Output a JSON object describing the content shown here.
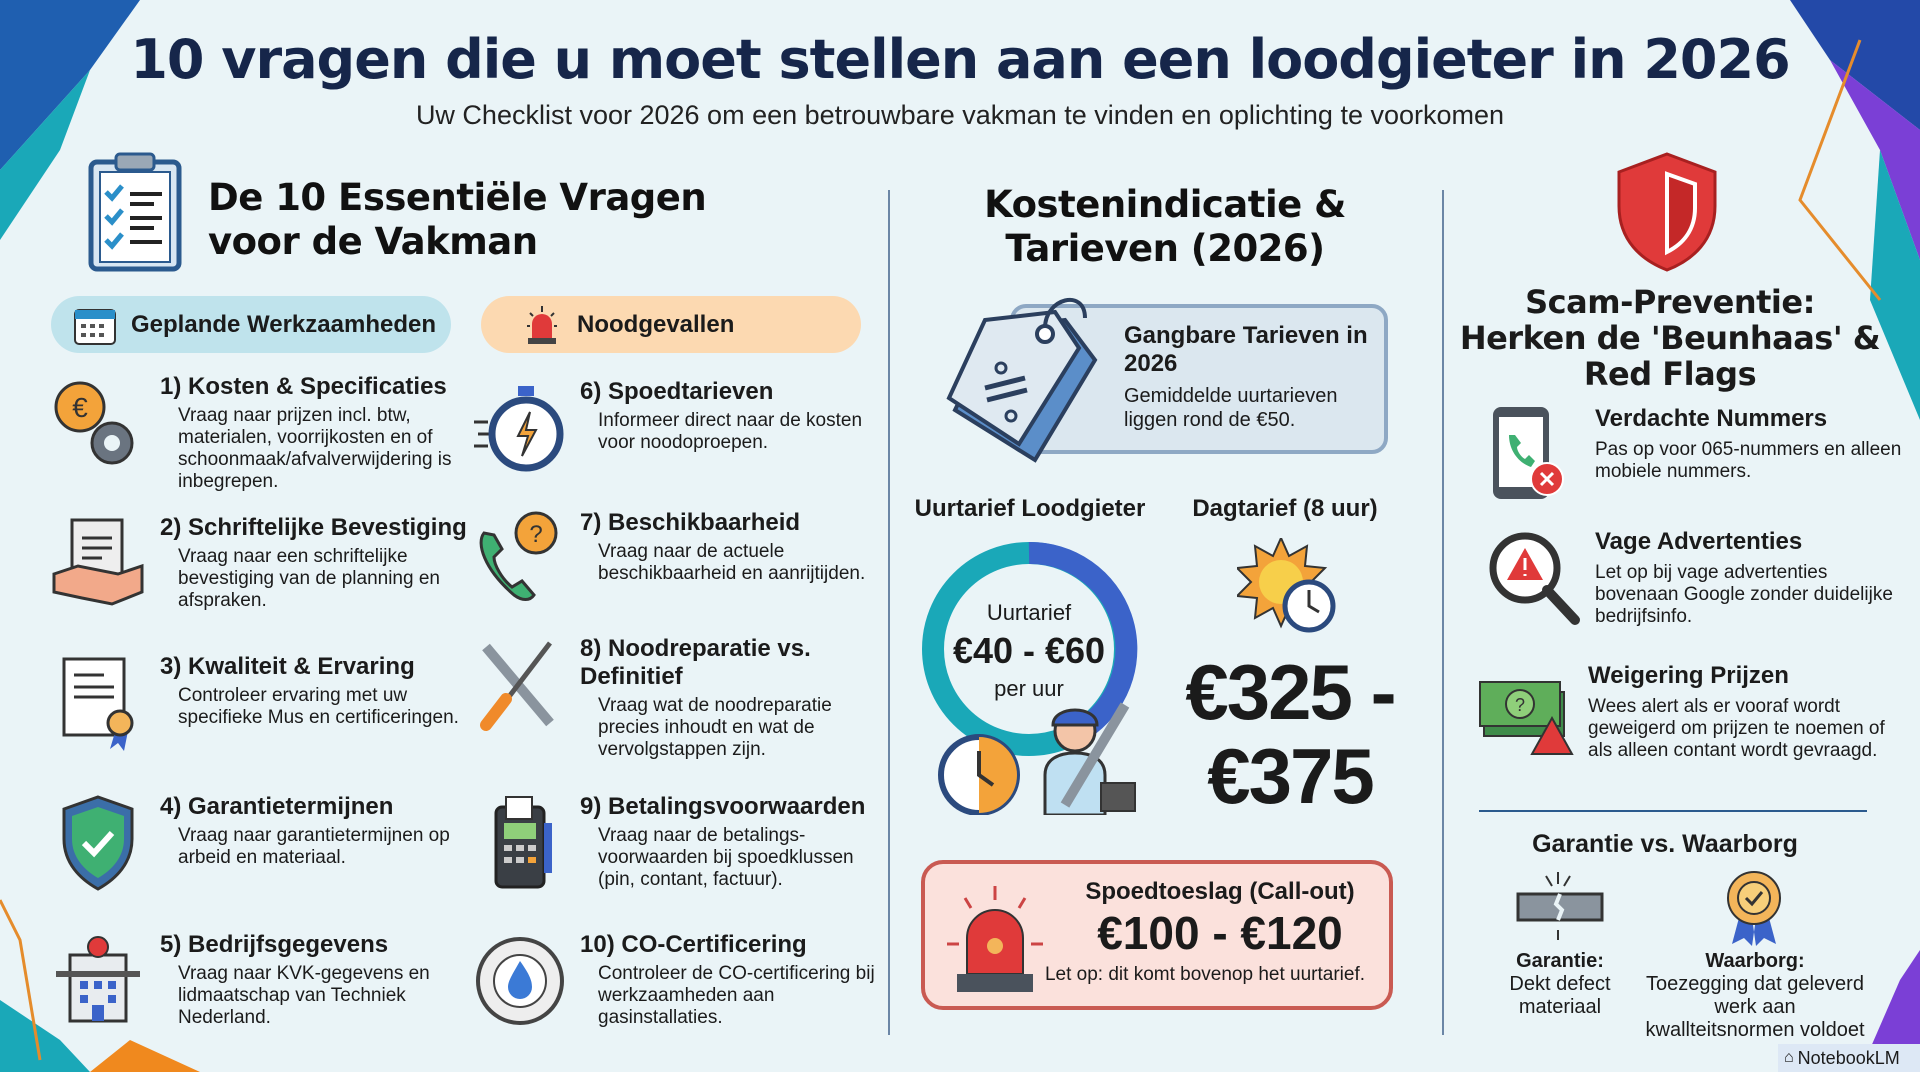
{
  "header": {
    "title": "10 vragen die u moet stellen aan een loodgieter in 2026",
    "subtitle": "Uw Checklist voor 2026 om een betrouwbare vakman te vinden en oplichting te voorkomen"
  },
  "colors": {
    "navy": "#16264a",
    "pill_blue": "#bfe3ec",
    "pill_orange": "#fcd9b1",
    "accent_red": "#e03a3a",
    "donut_teal": "#1aa8b8",
    "donut_blue": "#3b63c9"
  },
  "left": {
    "heading_line1": "De 10 Essentiële Vragen",
    "heading_line2": "voor de Vakman",
    "planned_label": "Geplande Werkzaamheden",
    "emergency_label": "Noodgevallen",
    "planned": [
      {
        "title": "1) Kosten & Specificaties",
        "desc": "Vraag naar prijzen incl. btw, materialen, voorrijkosten en of schoonmaak/afvalverwijdering is inbegrepen.",
        "icon": "euro-gear-icon"
      },
      {
        "title": "2) Schriftelijke Bevestiging",
        "desc": "Vraag naar een schriftelijke bevestiging van de planning en afspraken.",
        "icon": "handshake-document-icon"
      },
      {
        "title": "3) Kwaliteit & Ervaring",
        "desc": "Controleer ervaring met uw specifieke Mus en certificeringen.",
        "icon": "certificate-icon"
      },
      {
        "title": "4) Garantietermijnen",
        "desc": "Vraag naar garantietermijnen op arbeid en materiaal.",
        "icon": "shield-check-icon"
      },
      {
        "title": "5) Bedrijfsgegevens",
        "desc": "Vraag naar KVK-gegevens en lidmaatschap van Techniek Nederland.",
        "icon": "building-icon"
      }
    ],
    "emergency": [
      {
        "title": "6) Spoedtarieven",
        "desc": "Informeer direct naar de kosten voor noodoproepen.",
        "icon": "stopwatch-icon"
      },
      {
        "title": "7) Beschikbaarheid",
        "desc": "Vraag naar de actuele beschikbaarheid en aanrijtijden.",
        "icon": "phone-question-icon"
      },
      {
        "title": "8) Noodreparatie vs. Definitief",
        "desc": "Vraag wat de noodreparatie precies inhoudt en wat de vervolgstappen zijn.",
        "icon": "tools-icon"
      },
      {
        "title": "9) Betalingsvoorwaarden",
        "desc": "Vraag naar de betalings-voorwaarden bij spoedklussen (pin, contant, factuur).",
        "icon": "payment-terminal-icon"
      },
      {
        "title": "10) CO-Certificering",
        "desc": "Controleer de CO-certificering bij werkzaamheden aan gasinstallaties.",
        "icon": "gas-safety-seal-icon"
      }
    ]
  },
  "middle": {
    "heading_line1": "Kostenindicatie &",
    "heading_line2": "Tarieven (2026)",
    "rates_box": {
      "title": "Gangbare Tarieven in 2026",
      "desc": "Gemiddelde uurtarieven liggen rond de €50."
    },
    "hourly": {
      "label": "Uurtarief Loodgieter",
      "inner_label": "Uurtarief",
      "value": "€40 - €60",
      "unit": "per uur"
    },
    "daily": {
      "label": "Dagtarief (8 uur)",
      "value_line1": "€325 -",
      "value_line2": "€375"
    },
    "callout": {
      "title": "Spoedtoeslag (Call-out)",
      "value": "€100 - €120",
      "note": "Let op: dit komt bovenop het uurtarief."
    }
  },
  "right": {
    "heading_line1": "Scam-Preventie:",
    "heading_line2": "Herken de 'Beunhaas' &",
    "heading_line3": "Red Flags",
    "items": [
      {
        "title": "Verdachte Nummers",
        "desc": "Pas op voor 065-nummers en alleen mobiele nummers.",
        "icon": "phone-x-icon"
      },
      {
        "title": "Vage Advertenties",
        "desc": "Let op bij vage advertenties bovenaan Google zonder duidelijke bedrijfsinfo.",
        "icon": "magnifier-warning-icon"
      },
      {
        "title": "Weigering Prijzen",
        "desc": "Wees alert als er vooraf wordt geweigerd om prijzen te noemen of als alleen contant wordt gevraagd.",
        "icon": "money-warning-icon"
      }
    ],
    "compare": {
      "title": "Garantie vs. Waarborg",
      "garantie": {
        "label": "Garantie:",
        "desc": "Dekt defect materiaal"
      },
      "waarborg": {
        "label": "Waarborg:",
        "desc": "Toezegging dat geleverd werk aan kwallteitsnormen voldoet"
      }
    }
  },
  "badge": {
    "label": "NotebookLM"
  }
}
